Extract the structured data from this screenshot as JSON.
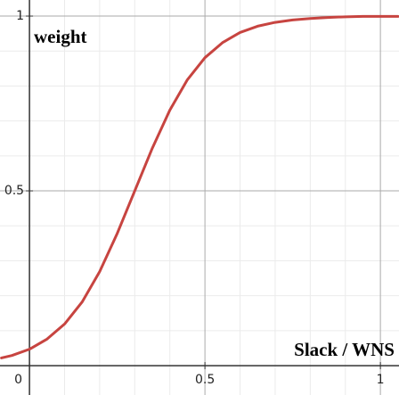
{
  "chart_data": {
    "type": "line",
    "xlabel": "Slack / WNS",
    "ylabel": "weight",
    "x": [
      -0.08,
      -0.05,
      0,
      0.05,
      0.1,
      0.15,
      0.2,
      0.25,
      0.3,
      0.35,
      0.4,
      0.45,
      0.5,
      0.55,
      0.6,
      0.65,
      0.7,
      0.75,
      0.8,
      0.85,
      0.9,
      0.95,
      1.0,
      1.05
    ],
    "series": [
      {
        "color": "#c74440",
        "values": [
          0.022,
          0.029,
          0.047,
          0.076,
          0.119,
          0.182,
          0.269,
          0.378,
          0.5,
          0.622,
          0.731,
          0.818,
          0.881,
          0.924,
          0.953,
          0.971,
          0.982,
          0.989,
          0.993,
          0.996,
          0.998,
          0.999,
          0.999,
          0.999
        ]
      }
    ],
    "xlim": [
      -0.084,
      1.053
    ],
    "ylim": [
      -0.084,
      1.046
    ],
    "xticks": [
      0,
      0.5,
      1
    ],
    "yticks": [
      0.5,
      1
    ],
    "x_minor_grid": [
      0.1,
      0.2,
      0.3,
      0.4,
      0.6,
      0.7,
      0.8,
      0.9
    ],
    "y_minor_grid": [
      0.1,
      0.2,
      0.3,
      0.4,
      0.6,
      0.7,
      0.8,
      0.9
    ],
    "grid": true
  }
}
